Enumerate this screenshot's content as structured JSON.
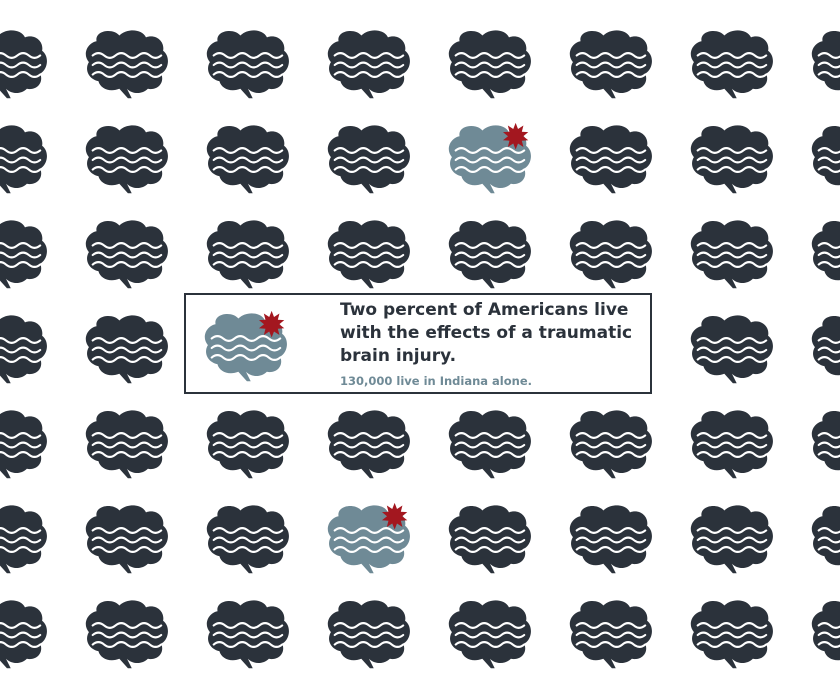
{
  "headline": "Two percent of Americans live with the effects of a traumatic brain injury.",
  "subline": "130,000 live in Indiana alone.",
  "icons": {
    "healthy": "brain-icon",
    "injured": "injured-brain-icon",
    "injury_marker": "starburst-icon"
  },
  "colors": {
    "healthy_brain": "#2b323b",
    "injured_brain": "#6f8a96",
    "injury_burst": "#a3171f",
    "folds": "#ffffff",
    "card_border": "#2b323b",
    "headline_text": "#2b323b",
    "subline_text": "#6f8a96"
  },
  "grid": {
    "rows": 7,
    "columns": 8,
    "injured_cells": [
      {
        "row": 2,
        "column": 5
      },
      {
        "row": 6,
        "column": 4
      }
    ]
  }
}
